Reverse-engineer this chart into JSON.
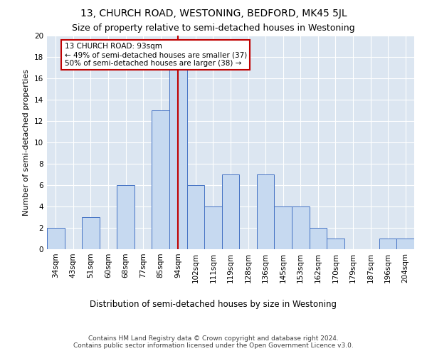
{
  "title1": "13, CHURCH ROAD, WESTONING, BEDFORD, MK45 5JL",
  "title2": "Size of property relative to semi-detached houses in Westoning",
  "xlabel": "Distribution of semi-detached houses by size in Westoning",
  "ylabel": "Number of semi-detached properties",
  "categories": [
    "34sqm",
    "43sqm",
    "51sqm",
    "60sqm",
    "68sqm",
    "77sqm",
    "85sqm",
    "94sqm",
    "102sqm",
    "111sqm",
    "119sqm",
    "128sqm",
    "136sqm",
    "145sqm",
    "153sqm",
    "162sqm",
    "170sqm",
    "179sqm",
    "187sqm",
    "196sqm",
    "204sqm"
  ],
  "values": [
    2,
    0,
    3,
    0,
    6,
    0,
    13,
    17,
    6,
    4,
    7,
    0,
    7,
    4,
    4,
    2,
    1,
    0,
    0,
    1,
    1
  ],
  "bar_color": "#c6d9f0",
  "bar_edge_color": "#4472c4",
  "highlight_index": 7,
  "highlight_line_color": "#c00000",
  "annotation_text": "13 CHURCH ROAD: 93sqm\n← 49% of semi-detached houses are smaller (37)\n50% of semi-detached houses are larger (38) →",
  "annotation_box_color": "#ffffff",
  "annotation_box_edge_color": "#c00000",
  "ylim": [
    0,
    20
  ],
  "yticks": [
    0,
    2,
    4,
    6,
    8,
    10,
    12,
    14,
    16,
    18,
    20
  ],
  "grid_color": "#ffffff",
  "bg_color": "#dce6f1",
  "footnote": "Contains HM Land Registry data © Crown copyright and database right 2024.\nContains public sector information licensed under the Open Government Licence v3.0.",
  "title1_fontsize": 10,
  "title2_fontsize": 9,
  "xlabel_fontsize": 8.5,
  "ylabel_fontsize": 8,
  "tick_fontsize": 7.5,
  "footnote_fontsize": 6.5,
  "annotation_fontsize": 7.5
}
